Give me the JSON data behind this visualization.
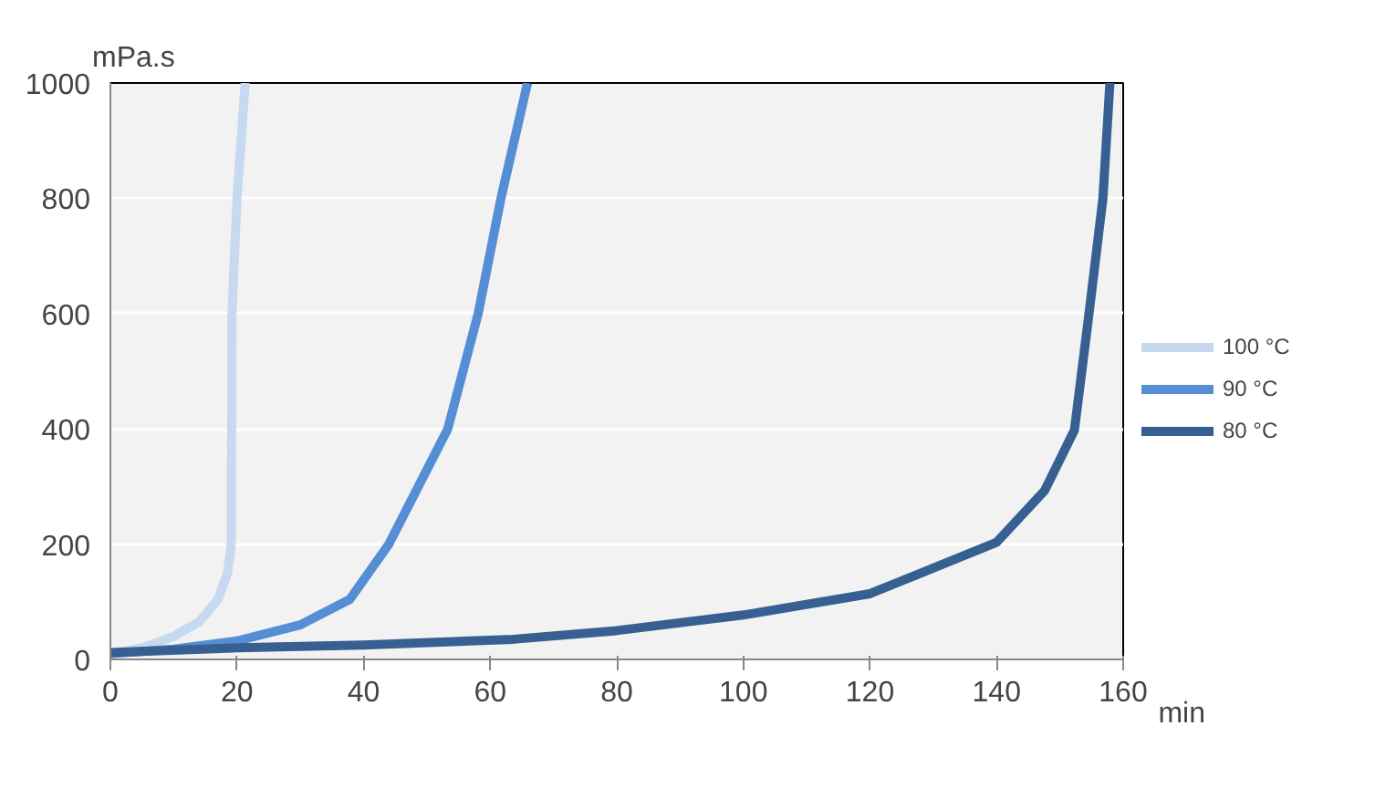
{
  "chart_data": {
    "type": "line",
    "ylabel": "mPa.s",
    "xlabel": "min",
    "xlim": [
      0,
      160
    ],
    "ylim": [
      0,
      1000
    ],
    "xticks": [
      0,
      20,
      40,
      60,
      80,
      100,
      120,
      140,
      160
    ],
    "yticks": [
      0,
      200,
      400,
      600,
      800,
      1000
    ],
    "grid": "y",
    "legend": "right",
    "line_style": "solid",
    "series": [
      {
        "name": "100 °C",
        "color": "#c6d9f0",
        "x": [
          0,
          5,
          10,
          14,
          17,
          18.5,
          19.1,
          19.2,
          20,
          21.3
        ],
        "values": [
          10,
          20,
          40,
          65,
          104,
          150,
          200,
          600,
          800,
          1000
        ]
      },
      {
        "name": "90 °C",
        "color": "#558ed5",
        "x": [
          0,
          10,
          20,
          30,
          37.8,
          44,
          53.3,
          58.1,
          61.7,
          65.9
        ],
        "values": [
          10,
          18,
          32,
          60,
          104,
          200,
          400,
          600,
          800,
          1000
        ]
      },
      {
        "name": "80 °C",
        "color": "#376092",
        "x": [
          0,
          20,
          40,
          63.7,
          80,
          100,
          120,
          140,
          147.6,
          152.3,
          154.6,
          156.8,
          157.9
        ],
        "values": [
          12,
          20,
          25,
          35,
          50,
          77,
          114,
          203,
          293,
          398,
          600,
          800,
          1000
        ]
      }
    ]
  }
}
